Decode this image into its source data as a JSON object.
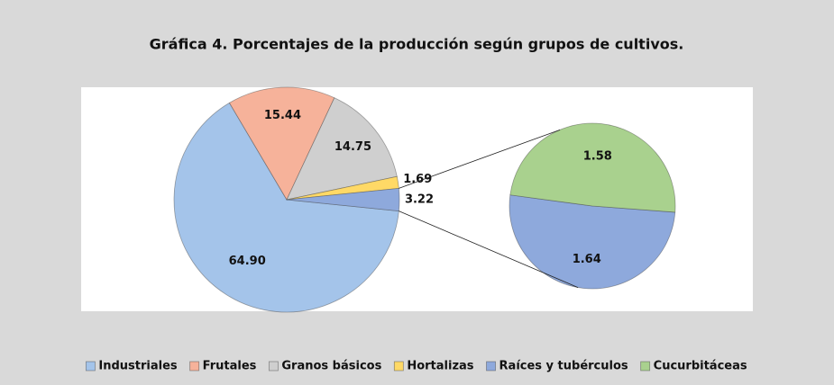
{
  "chart_data": {
    "type": "pie_of_pie",
    "title": "Gráfica 4. Porcentajes de la producción según grupos de cultivos.",
    "main": {
      "categories": [
        "Industriales",
        "Frutales",
        "Granos básicos",
        "Hortalizas",
        null
      ],
      "values": [
        64.9,
        15.44,
        14.75,
        1.69,
        3.22
      ],
      "value_labels": [
        "64.90",
        "15.44",
        "14.75",
        "1.69",
        "3.22"
      ],
      "colors": [
        "#a4c4ea",
        "#f6b29a",
        "#cfcfcf",
        "#ffd966",
        "#8ea9dc"
      ]
    },
    "secondary": {
      "categories": [
        "Raíces y tubérculos",
        "Cucurbitáceas"
      ],
      "values": [
        1.64,
        1.58
      ],
      "value_labels": [
        "1.64",
        "1.58"
      ],
      "colors": [
        "#8ea9dc",
        "#a9d18e"
      ]
    },
    "legend": "bottom"
  }
}
